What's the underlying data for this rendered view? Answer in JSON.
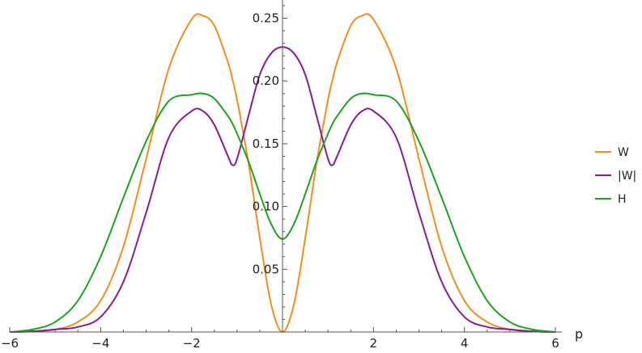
{
  "chart_data": {
    "type": "line",
    "title": "",
    "xlabel": "p",
    "ylabel": "",
    "xlim": [
      -6,
      6
    ],
    "ylim": [
      0,
      0.26
    ],
    "x_ticks": [
      -6,
      -4,
      -2,
      2,
      4,
      6
    ],
    "x_tick_labels": [
      "−6",
      "−4",
      "−2",
      "2",
      "4",
      "6"
    ],
    "y_ticks": [
      0.05,
      0.1,
      0.15,
      0.2,
      0.25
    ],
    "y_tick_labels": [
      "0.05",
      "0.10",
      "0.15",
      "0.20",
      "0.25"
    ],
    "grid": false,
    "legend_position": "right",
    "x": [
      -6,
      -5.5,
      -5,
      -4.5,
      -4,
      -3.5,
      -3,
      -2.5,
      -2,
      -1.75,
      -1.5,
      -1.2,
      -1.1,
      -1,
      -0.75,
      -0.5,
      -0.25,
      0,
      0.25,
      0.5,
      0.75,
      1,
      1.1,
      1.2,
      1.5,
      1.75,
      2,
      2.5,
      3,
      3.5,
      4,
      4.5,
      5,
      5.5,
      6
    ],
    "series": [
      {
        "name": "W",
        "color": "#f28e1c",
        "values": [
          0.0,
          0.0005,
          0.002,
          0.008,
          0.025,
          0.068,
          0.138,
          0.21,
          0.249,
          0.252,
          0.244,
          0.215,
          0.201,
          0.185,
          0.135,
          0.075,
          0.022,
          0.0,
          0.022,
          0.075,
          0.135,
          0.185,
          0.201,
          0.215,
          0.244,
          0.252,
          0.249,
          0.21,
          0.138,
          0.068,
          0.025,
          0.008,
          0.002,
          0.0005,
          0.0
        ]
      },
      {
        "name": "|W|",
        "color": "#8b1a8e",
        "values": [
          0.0,
          0.0005,
          0.002,
          0.004,
          0.012,
          0.04,
          0.095,
          0.155,
          0.176,
          0.176,
          0.165,
          0.14,
          0.133,
          0.138,
          0.172,
          0.205,
          0.222,
          0.227,
          0.222,
          0.205,
          0.172,
          0.138,
          0.133,
          0.14,
          0.165,
          0.176,
          0.176,
          0.155,
          0.095,
          0.04,
          0.012,
          0.004,
          0.002,
          0.0005,
          0.0
        ]
      },
      {
        "name": "H",
        "color": "#1aa51a",
        "values": [
          0.0,
          0.002,
          0.008,
          0.025,
          0.06,
          0.107,
          0.152,
          0.184,
          0.189,
          0.19,
          0.186,
          0.172,
          0.166,
          0.158,
          0.136,
          0.11,
          0.086,
          0.074,
          0.086,
          0.11,
          0.136,
          0.158,
          0.166,
          0.172,
          0.186,
          0.19,
          0.189,
          0.184,
          0.152,
          0.107,
          0.06,
          0.025,
          0.008,
          0.002,
          0.0
        ]
      }
    ]
  }
}
